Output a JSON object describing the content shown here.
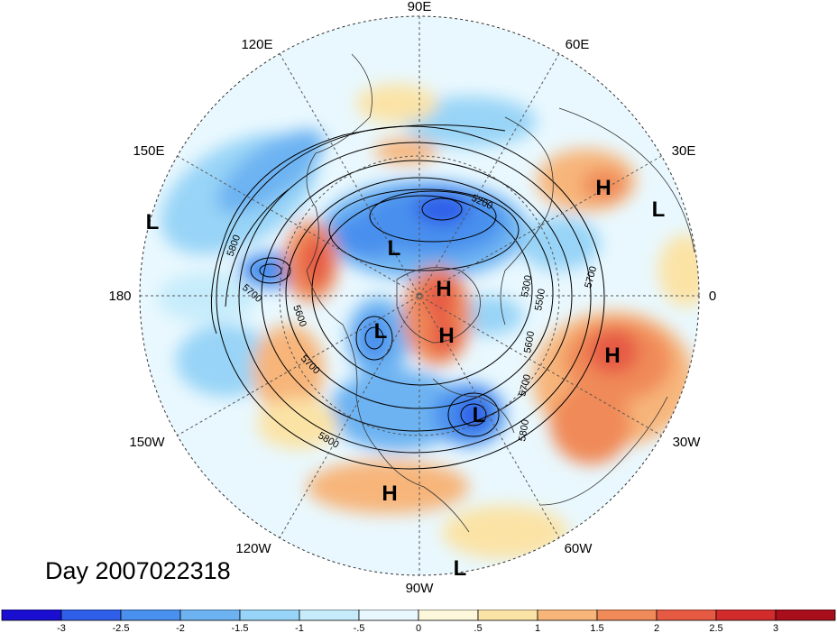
{
  "title": "Day 2007022318",
  "longitude_labels": [
    "90E",
    "60E",
    "30E",
    "0",
    "30W",
    "60W",
    "90W",
    "120W",
    "150W",
    "180",
    "150E",
    "120E"
  ],
  "contour_labels": [
    "5200",
    "5300",
    "5500",
    "5600",
    "5700",
    "5800"
  ],
  "pressure_centers": [
    "H",
    "L"
  ],
  "colorbar": {
    "ticks": [
      "-3",
      "-2.5",
      "-2",
      "-1.5",
      "-1",
      "-.5",
      "0",
      ".5",
      "1",
      "1.5",
      "2",
      "2.5",
      "3"
    ],
    "colors": [
      "#1a0fd1",
      "#2f5ee8",
      "#4a90ee",
      "#6db3f2",
      "#98d4f7",
      "#c6ecfb",
      "#e9f8fe",
      "#fdf7dc",
      "#fbe3a6",
      "#f7b57a",
      "#f08a58",
      "#e65a44",
      "#d12b2b",
      "#a80e1c"
    ]
  }
}
